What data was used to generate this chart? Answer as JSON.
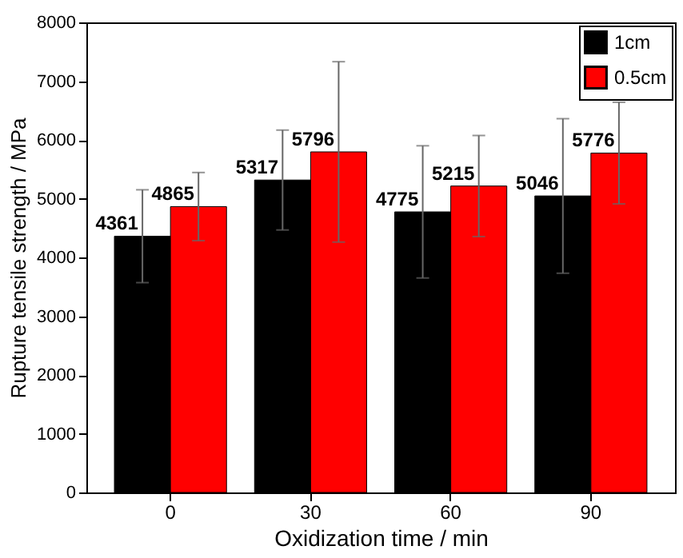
{
  "chart_data": {
    "type": "bar",
    "xlabel": "Oxidization time / min",
    "ylabel": "Rupture tensile strength / MPa",
    "categories": [
      "0",
      "30",
      "60",
      "90"
    ],
    "series": [
      {
        "name": "1cm",
        "color": "#000000",
        "values": [
          4361,
          5317,
          4775,
          5046
        ],
        "errors": [
          790,
          850,
          1125,
          1315
        ]
      },
      {
        "name": "0.5cm",
        "color": "#ff0000",
        "values": [
          4865,
          5796,
          5215,
          5776
        ],
        "errors": [
          580,
          1535,
          860,
          865
        ]
      }
    ],
    "ylim": [
      0,
      8000
    ],
    "yticks": [
      0,
      1000,
      2000,
      3000,
      4000,
      5000,
      6000,
      7000,
      8000
    ],
    "data_labels": true,
    "legend": "top right",
    "grid": false
  }
}
